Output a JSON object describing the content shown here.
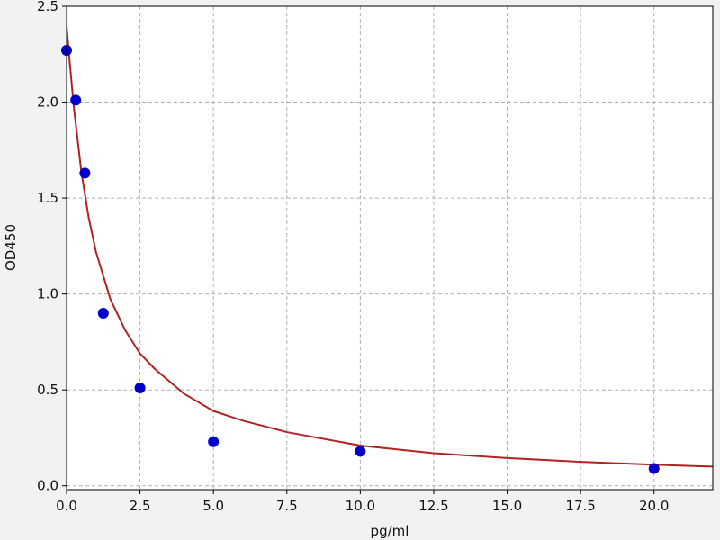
{
  "chart_data": {
    "type": "scatter",
    "title": "",
    "xlabel": "pg/ml",
    "ylabel": "OD450",
    "xlim": [
      0,
      22
    ],
    "ylim": [
      -0.02,
      2.5
    ],
    "x_ticks": [
      0,
      2.5,
      5,
      7.5,
      10,
      12.5,
      15,
      17.5,
      20
    ],
    "x_tick_labels": [
      "0.0",
      "2.5",
      "5.0",
      "7.5",
      "10.0",
      "12.5",
      "15.0",
      "17.5",
      "20.0"
    ],
    "y_ticks": [
      0,
      0.5,
      1.0,
      1.5,
      2.0,
      2.5
    ],
    "y_tick_labels": [
      "0.0",
      "0.5",
      "1.0",
      "1.5",
      "2.0",
      "2.5"
    ],
    "grid": true,
    "legend": "none",
    "series": [
      {
        "type": "scatter",
        "color": "#0000cc",
        "points": [
          {
            "x": 0,
            "y": 2.27
          },
          {
            "x": 0.3125,
            "y": 2.01
          },
          {
            "x": 0.625,
            "y": 1.63
          },
          {
            "x": 1.25,
            "y": 0.9
          },
          {
            "x": 2.5,
            "y": 0.51
          },
          {
            "x": 5,
            "y": 0.23
          },
          {
            "x": 10,
            "y": 0.18
          },
          {
            "x": 20,
            "y": 0.09
          }
        ]
      },
      {
        "type": "line",
        "color": "#b22222",
        "points": [
          {
            "x": 0,
            "y": 2.4
          },
          {
            "x": 0.1,
            "y": 2.22
          },
          {
            "x": 0.25,
            "y": 1.97
          },
          {
            "x": 0.5,
            "y": 1.64
          },
          {
            "x": 0.75,
            "y": 1.4
          },
          {
            "x": 1,
            "y": 1.22
          },
          {
            "x": 1.5,
            "y": 0.97
          },
          {
            "x": 2,
            "y": 0.81
          },
          {
            "x": 2.5,
            "y": 0.69
          },
          {
            "x": 3,
            "y": 0.61
          },
          {
            "x": 4,
            "y": 0.48
          },
          {
            "x": 5,
            "y": 0.39
          },
          {
            "x": 6,
            "y": 0.34
          },
          {
            "x": 7.5,
            "y": 0.28
          },
          {
            "x": 10,
            "y": 0.21
          },
          {
            "x": 12.5,
            "y": 0.17
          },
          {
            "x": 15,
            "y": 0.145
          },
          {
            "x": 17.5,
            "y": 0.125
          },
          {
            "x": 20,
            "y": 0.11
          },
          {
            "x": 22,
            "y": 0.1
          }
        ]
      }
    ]
  }
}
